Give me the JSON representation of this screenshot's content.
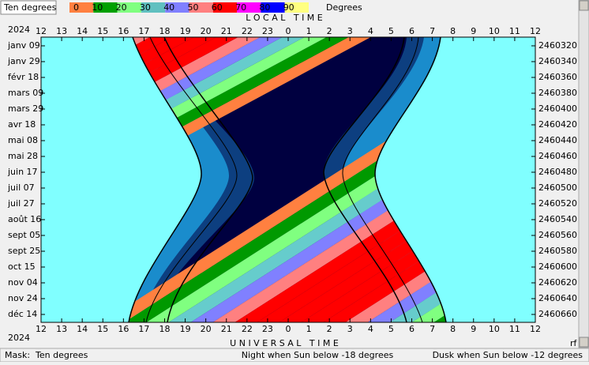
{
  "legend": {
    "mask_label": "Ten degrees",
    "scale": [
      "0",
      "10",
      "20",
      "30",
      "40",
      "50",
      "60",
      "70",
      "80",
      "90"
    ],
    "unit": "Degrees"
  },
  "header": {
    "title": "L O C A L   T I M E",
    "year": "2024",
    "hours": [
      12,
      13,
      14,
      15,
      16,
      17,
      18,
      19,
      20,
      21,
      22,
      23,
      0,
      1,
      2,
      3,
      4,
      5,
      6,
      7,
      8,
      9,
      10,
      11,
      12
    ]
  },
  "dates": [
    "janv 09",
    "janv 29",
    "févr 18",
    "mars 09",
    "mars 29",
    "avr 18",
    "mai 08",
    "mai 28",
    "juin 17",
    "juil 07",
    "juil 27",
    "août 16",
    "sept 05",
    "sept 25",
    "oct 15",
    "nov 04",
    "nov 24",
    "déc 14"
  ],
  "julian_days": [
    2460320,
    2460340,
    2460360,
    2460380,
    2460400,
    2460420,
    2460440,
    2460460,
    2460480,
    2460500,
    2460520,
    2460540,
    2460560,
    2460580,
    2460600,
    2460620,
    2460640,
    2460660
  ],
  "footer": {
    "year": "2024",
    "title": "U N I V E R S A L   T I M E",
    "hours": [
      12,
      13,
      14,
      15,
      16,
      17,
      18,
      19,
      20,
      21,
      22,
      23,
      0,
      1,
      2,
      3,
      4,
      5,
      6,
      7,
      8,
      9,
      10,
      11,
      12
    ],
    "corner": "rf"
  },
  "status": {
    "mask": "Mask:  Ten degrees",
    "night": "Night when Sun below -18 degrees",
    "dusk": "Dusk when Sun below -12 degrees"
  }
}
